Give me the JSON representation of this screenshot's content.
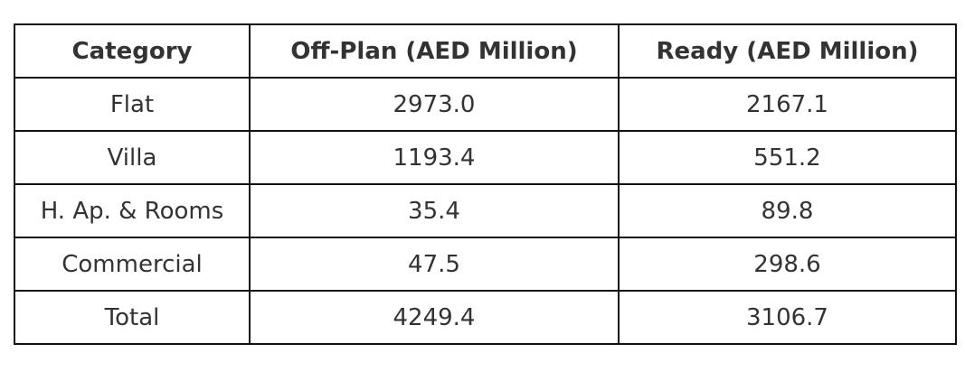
{
  "chart_data": {
    "type": "table",
    "columns": [
      "Category",
      "Off-Plan (AED Million)",
      "Ready (AED Million)"
    ],
    "rows": [
      [
        "Flat",
        "2973.0",
        "2167.1"
      ],
      [
        "Villa",
        "1193.4",
        "551.2"
      ],
      [
        "H. Ap. & Rooms",
        "35.4",
        "89.8"
      ],
      [
        "Commercial",
        "47.5",
        "298.6"
      ],
      [
        "Total",
        "4249.4",
        "3106.7"
      ]
    ],
    "colors": {
      "text": "#333333",
      "border": "#111111",
      "background": "#ffffff"
    }
  }
}
